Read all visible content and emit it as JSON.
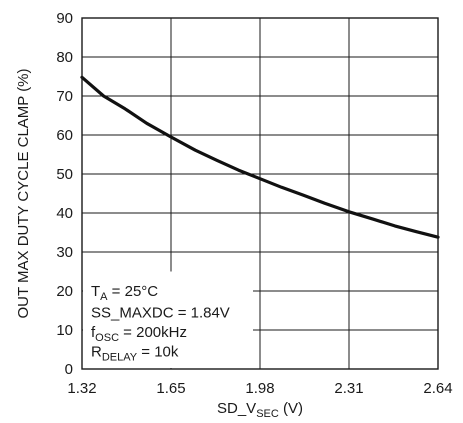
{
  "chart_data": {
    "type": "line",
    "title": "",
    "xlabel": {
      "main": "SD_V",
      "sub": "SEC",
      "unit": " (V)"
    },
    "ylabel": "OUT MAX DUTY CYCLE CLAMP (%)",
    "xlim": [
      1.32,
      2.64
    ],
    "ylim": [
      0,
      90
    ],
    "x_ticks": [
      1.32,
      1.65,
      1.98,
      2.31,
      2.64
    ],
    "x_tick_labels": [
      "1.32",
      "1.65",
      "1.98",
      "2.31",
      "2.64"
    ],
    "y_ticks": [
      0,
      10,
      20,
      30,
      40,
      50,
      60,
      70,
      80,
      90
    ],
    "y_tick_labels": [
      "0",
      "10",
      "20",
      "30",
      "40",
      "50",
      "60",
      "70",
      "80",
      "90"
    ],
    "grid": true,
    "series": [
      {
        "color": "#111111",
        "x": [
          1.32,
          1.4,
          1.48,
          1.56,
          1.65,
          1.74,
          1.82,
          1.9,
          1.98,
          2.06,
          2.14,
          2.22,
          2.31,
          2.4,
          2.48,
          2.56,
          2.64
        ],
        "y": [
          74.8,
          70.0,
          66.7,
          63.0,
          59.5,
          56.1,
          53.5,
          51.0,
          48.8,
          46.6,
          44.6,
          42.5,
          40.3,
          38.4,
          36.7,
          35.2,
          33.8
        ]
      }
    ],
    "annotation": {
      "lines": [
        {
          "main": "T",
          "sub": "A",
          "rest": " = 25°C"
        },
        {
          "main": "SS_MAXDC = 1.84V",
          "sub": "",
          "rest": ""
        },
        {
          "main": "f",
          "sub": "OSC",
          "rest": " = 200kHz"
        },
        {
          "main": "R",
          "sub": "DELAY",
          "rest": " = 10k"
        }
      ]
    }
  }
}
